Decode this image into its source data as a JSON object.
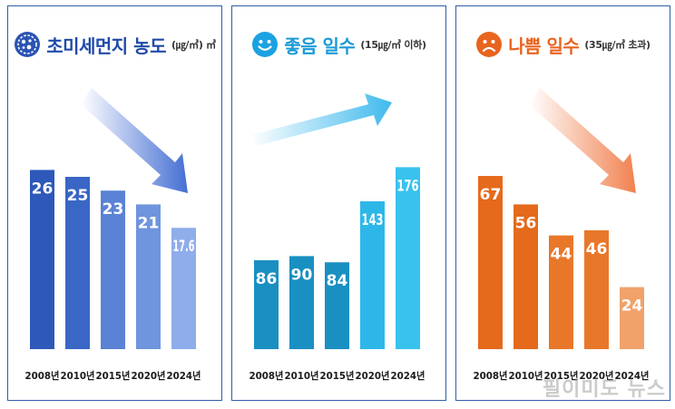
{
  "chart_data": [
    {
      "type": "bar",
      "title": "초미세먼지 농도",
      "unit": "(㎍/㎥) ㎥",
      "icon": "dust-particle-icon",
      "categories": [
        "2008년",
        "2010년",
        "2015년",
        "2020년",
        "2024년"
      ],
      "values": [
        26,
        25,
        23,
        21,
        17.6
      ],
      "value_labels": [
        "26",
        "25",
        "23",
        "21",
        "17.6"
      ],
      "ylim": [
        0,
        30
      ],
      "trend": "down",
      "colors": [
        "#2e58b9",
        "#3a66c6",
        "#5a83d5",
        "#6e95dd",
        "#8eadea"
      ],
      "title_color": "#1f4aa8",
      "grid": false
    },
    {
      "type": "bar",
      "title": "좋음 일수",
      "unit": "(15㎍/㎥ 이하)",
      "icon": "smiley-face-icon",
      "categories": [
        "2008년",
        "2010년",
        "2015년",
        "2020년",
        "2024년"
      ],
      "values": [
        86,
        90,
        84,
        143,
        176
      ],
      "value_labels": [
        "86",
        "90",
        "84",
        "143",
        "176"
      ],
      "ylim": [
        0,
        200
      ],
      "trend": "up",
      "colors": [
        "#1a8fc2",
        "#1a8fc2",
        "#1a8fc2",
        "#2db7e8",
        "#38c2ee"
      ],
      "title_color": "#1a9ad6",
      "grid": false
    },
    {
      "type": "bar",
      "title": "나쁨 일수",
      "unit": "(35㎍/㎥ 초과)",
      "icon": "frown-face-icon",
      "categories": [
        "2008년",
        "2010년",
        "2015년",
        "2020년",
        "2024년"
      ],
      "values": [
        67,
        56,
        44,
        46,
        24
      ],
      "value_labels": [
        "67",
        "56",
        "44",
        "46",
        "24"
      ],
      "ylim": [
        0,
        80
      ],
      "trend": "down",
      "colors": [
        "#e56a1c",
        "#e56a1c",
        "#e9772a",
        "#e9772a",
        "#f0a26a"
      ],
      "title_color": "#e8641f",
      "grid": false
    }
  ],
  "watermark": "필이미도 뉴스"
}
